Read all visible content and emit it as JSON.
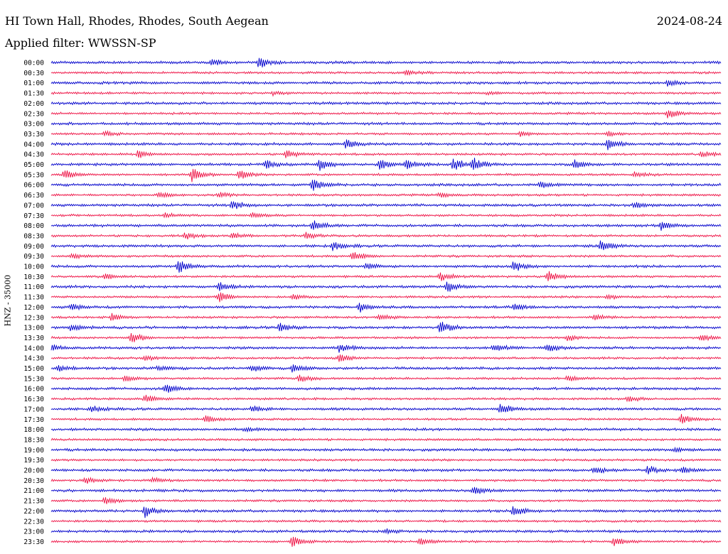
{
  "header": {
    "station": "HI Town Hall, Rhodes, Rhodes, South Aegean",
    "date": "2024-08-24",
    "filter": "Applied filter: WWSSN-SP"
  },
  "axis": {
    "ylabel": "HNZ - 35000"
  },
  "colors": {
    "trace_a": "#0000cc",
    "trace_b": "#ee1144"
  },
  "chart_data": {
    "type": "line",
    "title": "HI Town Hall, Rhodes, Rhodes, South Aegean",
    "ylabel": "HNZ - 35000",
    "row_interval_minutes": 30,
    "rows": [
      {
        "time": "00:00",
        "color": "blue",
        "events": [
          [
            0.24,
            5
          ],
          [
            0.31,
            9
          ]
        ]
      },
      {
        "time": "00:30",
        "color": "red",
        "events": [
          [
            0.53,
            5
          ]
        ]
      },
      {
        "time": "01:00",
        "color": "blue",
        "events": [
          [
            0.92,
            5
          ]
        ]
      },
      {
        "time": "01:30",
        "color": "red",
        "events": [
          [
            0.33,
            3
          ],
          [
            0.65,
            2
          ]
        ]
      },
      {
        "time": "02:00",
        "color": "blue",
        "events": []
      },
      {
        "time": "02:30",
        "color": "red",
        "events": [
          [
            0.92,
            8
          ]
        ]
      },
      {
        "time": "03:00",
        "color": "blue",
        "events": []
      },
      {
        "time": "03:30",
        "color": "red",
        "events": [
          [
            0.08,
            4
          ],
          [
            0.7,
            4
          ],
          [
            0.83,
            4
          ]
        ]
      },
      {
        "time": "04:00",
        "color": "blue",
        "events": [
          [
            0.44,
            8
          ],
          [
            0.83,
            9
          ]
        ]
      },
      {
        "time": "04:30",
        "color": "red",
        "events": [
          [
            0.13,
            7
          ],
          [
            0.35,
            7
          ],
          [
            0.97,
            5
          ]
        ]
      },
      {
        "time": "05:00",
        "color": "blue",
        "events": [
          [
            0.32,
            7
          ],
          [
            0.4,
            9
          ],
          [
            0.49,
            9
          ],
          [
            0.53,
            8
          ],
          [
            0.6,
            10
          ],
          [
            0.63,
            9
          ],
          [
            0.78,
            8
          ]
        ]
      },
      {
        "time": "05:30",
        "color": "red",
        "events": [
          [
            0.02,
            9
          ],
          [
            0.21,
            11
          ],
          [
            0.28,
            8
          ],
          [
            0.87,
            5
          ]
        ]
      },
      {
        "time": "06:00",
        "color": "blue",
        "events": [
          [
            0.39,
            10
          ],
          [
            0.73,
            5
          ]
        ]
      },
      {
        "time": "06:30",
        "color": "red",
        "events": [
          [
            0.16,
            5
          ],
          [
            0.25,
            4
          ],
          [
            0.58,
            4
          ]
        ]
      },
      {
        "time": "07:00",
        "color": "blue",
        "events": [
          [
            0.27,
            8
          ],
          [
            0.87,
            6
          ]
        ]
      },
      {
        "time": "07:30",
        "color": "red",
        "events": [
          [
            0.17,
            4
          ],
          [
            0.3,
            4
          ]
        ]
      },
      {
        "time": "08:00",
        "color": "blue",
        "events": [
          [
            0.39,
            10
          ],
          [
            0.91,
            8
          ]
        ]
      },
      {
        "time": "08:30",
        "color": "red",
        "events": [
          [
            0.2,
            6
          ],
          [
            0.27,
            5
          ],
          [
            0.38,
            5
          ]
        ]
      },
      {
        "time": "09:00",
        "color": "blue",
        "events": [
          [
            0.42,
            7
          ],
          [
            0.82,
            11
          ]
        ]
      },
      {
        "time": "09:30",
        "color": "red",
        "events": [
          [
            0.45,
            8
          ],
          [
            0.03,
            4
          ]
        ]
      },
      {
        "time": "10:00",
        "color": "blue",
        "events": [
          [
            0.19,
            11
          ],
          [
            0.69,
            8
          ],
          [
            0.47,
            4
          ]
        ]
      },
      {
        "time": "10:30",
        "color": "red",
        "events": [
          [
            0.08,
            5
          ],
          [
            0.58,
            7
          ],
          [
            0.74,
            10
          ]
        ]
      },
      {
        "time": "11:00",
        "color": "blue",
        "events": [
          [
            0.25,
            8
          ],
          [
            0.59,
            9
          ]
        ]
      },
      {
        "time": "11:30",
        "color": "red",
        "events": [
          [
            0.25,
            9
          ],
          [
            0.36,
            5
          ],
          [
            0.83,
            4
          ]
        ]
      },
      {
        "time": "12:00",
        "color": "blue",
        "events": [
          [
            0.03,
            5
          ],
          [
            0.46,
            7
          ],
          [
            0.69,
            6
          ]
        ]
      },
      {
        "time": "12:30",
        "color": "red",
        "events": [
          [
            0.09,
            6
          ],
          [
            0.49,
            5
          ],
          [
            0.81,
            5
          ]
        ]
      },
      {
        "time": "13:00",
        "color": "blue",
        "events": [
          [
            0.03,
            6
          ],
          [
            0.34,
            7
          ],
          [
            0.58,
            11
          ]
        ]
      },
      {
        "time": "13:30",
        "color": "red",
        "events": [
          [
            0.12,
            10
          ],
          [
            0.77,
            5
          ],
          [
            0.97,
            6
          ]
        ]
      },
      {
        "time": "14:00",
        "color": "blue",
        "events": [
          [
            0.0,
            5
          ],
          [
            0.43,
            7
          ],
          [
            0.66,
            6
          ],
          [
            0.74,
            8
          ]
        ]
      },
      {
        "time": "14:30",
        "color": "red",
        "events": [
          [
            0.43,
            7
          ],
          [
            0.14,
            4
          ]
        ]
      },
      {
        "time": "15:00",
        "color": "blue",
        "events": [
          [
            0.01,
            5
          ],
          [
            0.36,
            7
          ],
          [
            0.3,
            5
          ],
          [
            0.16,
            4
          ]
        ]
      },
      {
        "time": "15:30",
        "color": "red",
        "events": [
          [
            0.11,
            6
          ],
          [
            0.37,
            6
          ],
          [
            0.77,
            5
          ]
        ]
      },
      {
        "time": "16:00",
        "color": "blue",
        "events": [
          [
            0.17,
            8
          ]
        ]
      },
      {
        "time": "16:30",
        "color": "red",
        "events": [
          [
            0.14,
            7
          ],
          [
            0.86,
            5
          ]
        ]
      },
      {
        "time": "17:00",
        "color": "blue",
        "events": [
          [
            0.06,
            5
          ],
          [
            0.3,
            5
          ],
          [
            0.67,
            9
          ]
        ]
      },
      {
        "time": "17:30",
        "color": "red",
        "events": [
          [
            0.23,
            6
          ],
          [
            0.94,
            8
          ]
        ]
      },
      {
        "time": "18:00",
        "color": "blue",
        "events": [
          [
            0.29,
            3
          ]
        ]
      },
      {
        "time": "18:30",
        "color": "red",
        "events": []
      },
      {
        "time": "19:00",
        "color": "blue",
        "events": [
          [
            0.93,
            3
          ]
        ]
      },
      {
        "time": "19:30",
        "color": "red",
        "events": []
      },
      {
        "time": "20:00",
        "color": "blue",
        "events": [
          [
            0.81,
            6
          ],
          [
            0.89,
            6
          ],
          [
            0.94,
            5
          ]
        ]
      },
      {
        "time": "20:30",
        "color": "red",
        "events": [
          [
            0.05,
            5
          ],
          [
            0.15,
            4
          ]
        ]
      },
      {
        "time": "21:00",
        "color": "blue",
        "events": [
          [
            0.63,
            8
          ]
        ]
      },
      {
        "time": "21:30",
        "color": "red",
        "events": [
          [
            0.08,
            7
          ]
        ]
      },
      {
        "time": "22:00",
        "color": "blue",
        "events": [
          [
            0.14,
            9
          ],
          [
            0.69,
            10
          ]
        ]
      },
      {
        "time": "22:30",
        "color": "red",
        "events": []
      },
      {
        "time": "23:00",
        "color": "blue",
        "events": [
          [
            0.5,
            3
          ]
        ]
      },
      {
        "time": "23:30",
        "color": "red",
        "events": [
          [
            0.36,
            11
          ],
          [
            0.55,
            6
          ],
          [
            0.84,
            8
          ]
        ]
      }
    ]
  }
}
